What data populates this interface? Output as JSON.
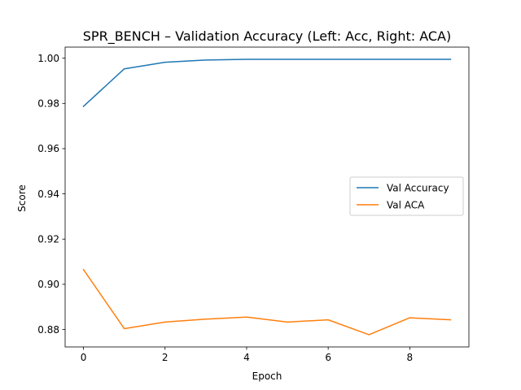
{
  "chart_data": {
    "type": "line",
    "title": "SPR_BENCH – Validation Accuracy (Left: Acc, Right: ACA)",
    "xlabel": "Epoch",
    "ylabel": "Score",
    "xlim": [
      -0.45,
      9.45
    ],
    "ylim": [
      0.8723,
      1.0049
    ],
    "x_ticks": [
      0,
      2,
      4,
      6,
      8
    ],
    "y_ticks": [
      0.88,
      0.9,
      0.92,
      0.94,
      0.96,
      0.98,
      1.0
    ],
    "x_tick_labels": [
      "0",
      "2",
      "4",
      "6",
      "8"
    ],
    "y_tick_labels": [
      "0.88",
      "0.90",
      "0.92",
      "0.94",
      "0.96",
      "0.98",
      "1.00"
    ],
    "grid": false,
    "legend_position": "center-right",
    "x": [
      0,
      1,
      2,
      3,
      4,
      5,
      6,
      7,
      8,
      9
    ],
    "series": [
      {
        "name": "Val Accuracy",
        "color": "#1f77b4",
        "values": [
          0.9787,
          0.9953,
          0.9982,
          0.9992,
          0.9995,
          0.9995,
          0.9995,
          0.9995,
          0.9995,
          0.9995
        ]
      },
      {
        "name": "Val ACA",
        "color": "#ff7f0e",
        "values": [
          0.9065,
          0.8804,
          0.8833,
          0.8846,
          0.8855,
          0.8833,
          0.8843,
          0.8777,
          0.8852,
          0.8843
        ]
      }
    ]
  }
}
